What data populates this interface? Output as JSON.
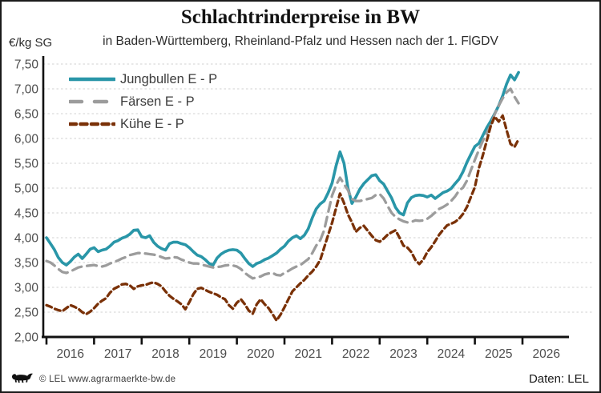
{
  "header": {
    "title": "Schlachtrinderpreise in BW",
    "subtitle": "in Baden-Württemberg, Rheinland-Pfalz und Hessen nach der 1. FlGDV",
    "y_unit_label": "€/kg SG"
  },
  "legend": {
    "items": [
      {
        "label": "Jungbullen E - P",
        "color": "#2996A8",
        "style": "solid"
      },
      {
        "label": "Färsen E - P",
        "color": "#9C9C9C",
        "style": "long-dash"
      },
      {
        "label": "Kühe E - P",
        "color": "#7A3107",
        "style": "short-dash"
      }
    ]
  },
  "footer": {
    "copyright": "© LEL www.agrarmaerkte-bw.de",
    "source": "Daten: LEL",
    "logo_icon": "bw-lion"
  },
  "colors": {
    "grid": "#d9d9d9",
    "axis": "#111111",
    "tick_text": "#4d4d4d"
  },
  "chart_data": {
    "type": "line",
    "title": "Schlachtrinderpreise in BW",
    "subtitle": "in Baden-Württemberg, Rheinland-Pfalz und Hessen nach der 1. FlGDV",
    "ylabel": "€/kg SG",
    "ylim": [
      2.0,
      7.5
    ],
    "grid": "horizontal-dashed",
    "legend_position": "top-left",
    "x_unit": "month",
    "x_start": "2016-01",
    "x_end": "2025-12",
    "x_tick_labels": [
      "2016",
      "2017",
      "2018",
      "2019",
      "2020",
      "2021",
      "2022",
      "2023",
      "2024",
      "2025",
      "2026"
    ],
    "y_ticks": [
      {
        "value": 2.0,
        "label": "2,00"
      },
      {
        "value": 2.5,
        "label": "2,50"
      },
      {
        "value": 3.0,
        "label": "3,00"
      },
      {
        "value": 3.5,
        "label": "3,50"
      },
      {
        "value": 4.0,
        "label": "4,00"
      },
      {
        "value": 4.5,
        "label": "4,50"
      },
      {
        "value": 5.0,
        "label": "5,00"
      },
      {
        "value": 5.5,
        "label": "5,50"
      },
      {
        "value": 6.0,
        "label": "6,00"
      },
      {
        "value": 6.5,
        "label": "6,50"
      },
      {
        "value": 7.0,
        "label": "7,00"
      },
      {
        "value": 7.5,
        "label": "7,50"
      }
    ],
    "series": [
      {
        "name": "Jungbullen E - P",
        "color": "#2996A8",
        "dash": null,
        "values": [
          4.0,
          3.88,
          3.76,
          3.6,
          3.5,
          3.45,
          3.52,
          3.61,
          3.67,
          3.58,
          3.67,
          3.77,
          3.8,
          3.72,
          3.75,
          3.77,
          3.83,
          3.91,
          3.94,
          3.99,
          4.02,
          4.07,
          4.15,
          4.16,
          4.02,
          4.0,
          4.04,
          3.91,
          3.83,
          3.78,
          3.75,
          3.88,
          3.91,
          3.91,
          3.88,
          3.86,
          3.8,
          3.72,
          3.65,
          3.62,
          3.56,
          3.48,
          3.45,
          3.59,
          3.67,
          3.72,
          3.75,
          3.76,
          3.75,
          3.69,
          3.58,
          3.48,
          3.42,
          3.48,
          3.51,
          3.56,
          3.59,
          3.64,
          3.69,
          3.77,
          3.83,
          3.93,
          4.0,
          4.04,
          3.98,
          4.05,
          4.18,
          4.4,
          4.58,
          4.68,
          4.74,
          4.9,
          5.1,
          5.45,
          5.73,
          5.5,
          5.0,
          4.69,
          4.82,
          4.98,
          5.09,
          5.17,
          5.25,
          5.27,
          5.15,
          5.08,
          4.94,
          4.8,
          4.61,
          4.5,
          4.46,
          4.7,
          4.81,
          4.85,
          4.86,
          4.85,
          4.82,
          4.86,
          4.79,
          4.85,
          4.91,
          4.94,
          4.99,
          5.09,
          5.18,
          5.33,
          5.52,
          5.68,
          5.84,
          5.9,
          6.06,
          6.22,
          6.35,
          6.5,
          6.66,
          6.86,
          7.1,
          7.28,
          7.18,
          7.33
        ]
      },
      {
        "name": "Färsen E - P",
        "color": "#9C9C9C",
        "dash": [
          12,
          7
        ],
        "values": [
          3.53,
          3.5,
          3.44,
          3.37,
          3.31,
          3.29,
          3.32,
          3.36,
          3.4,
          3.42,
          3.43,
          3.44,
          3.45,
          3.43,
          3.42,
          3.44,
          3.48,
          3.51,
          3.54,
          3.58,
          3.61,
          3.65,
          3.67,
          3.69,
          3.69,
          3.68,
          3.67,
          3.66,
          3.64,
          3.61,
          3.58,
          3.59,
          3.61,
          3.6,
          3.56,
          3.53,
          3.5,
          3.48,
          3.48,
          3.46,
          3.44,
          3.42,
          3.4,
          3.41,
          3.42,
          3.44,
          3.45,
          3.44,
          3.42,
          3.37,
          3.29,
          3.23,
          3.18,
          3.2,
          3.22,
          3.26,
          3.28,
          3.29,
          3.25,
          3.24,
          3.29,
          3.33,
          3.38,
          3.42,
          3.45,
          3.51,
          3.57,
          3.69,
          3.84,
          3.95,
          4.15,
          4.5,
          4.85,
          5.06,
          5.21,
          5.08,
          4.96,
          4.78,
          4.74,
          4.74,
          4.76,
          4.78,
          4.8,
          4.86,
          4.88,
          4.79,
          4.64,
          4.5,
          4.42,
          4.37,
          4.33,
          4.31,
          4.32,
          4.35,
          4.34,
          4.35,
          4.38,
          4.44,
          4.51,
          4.58,
          4.62,
          4.67,
          4.74,
          4.83,
          4.95,
          5.01,
          5.15,
          5.36,
          5.57,
          5.77,
          5.95,
          6.11,
          6.27,
          6.49,
          6.66,
          6.81,
          6.93,
          7.0,
          6.84,
          6.71
        ]
      },
      {
        "name": "Kühe E - P",
        "color": "#7A3107",
        "dash": [
          7,
          4.5
        ],
        "values": [
          2.64,
          2.61,
          2.57,
          2.54,
          2.52,
          2.58,
          2.64,
          2.61,
          2.57,
          2.5,
          2.46,
          2.51,
          2.58,
          2.67,
          2.73,
          2.78,
          2.89,
          2.97,
          3.01,
          3.06,
          3.07,
          3.04,
          2.97,
          3.02,
          3.04,
          3.05,
          3.08,
          3.1,
          3.07,
          3.02,
          2.92,
          2.83,
          2.77,
          2.72,
          2.66,
          2.56,
          2.7,
          2.86,
          2.97,
          2.99,
          2.95,
          2.91,
          2.88,
          2.85,
          2.8,
          2.76,
          2.64,
          2.57,
          2.69,
          2.76,
          2.66,
          2.53,
          2.47,
          2.66,
          2.76,
          2.66,
          2.58,
          2.46,
          2.33,
          2.45,
          2.6,
          2.76,
          2.92,
          3.0,
          3.08,
          3.15,
          3.24,
          3.32,
          3.42,
          3.55,
          3.8,
          4.05,
          4.3,
          4.6,
          4.89,
          4.7,
          4.47,
          4.31,
          4.12,
          4.2,
          4.24,
          4.14,
          4.04,
          3.95,
          3.92,
          3.98,
          4.06,
          4.11,
          4.15,
          4.0,
          3.84,
          3.8,
          3.71,
          3.55,
          3.47,
          3.56,
          3.71,
          3.81,
          3.93,
          4.06,
          4.16,
          4.25,
          4.28,
          4.32,
          4.38,
          4.48,
          4.62,
          4.82,
          5.02,
          5.4,
          5.66,
          5.96,
          6.25,
          6.44,
          6.34,
          6.46,
          6.17,
          5.89,
          5.83,
          5.98
        ]
      }
    ]
  }
}
